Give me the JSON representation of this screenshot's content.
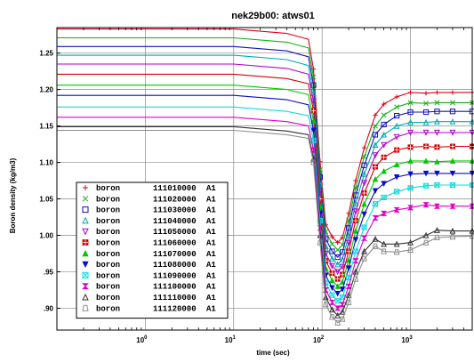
{
  "chart_data": {
    "type": "line",
    "title": "nek29b00: atws01",
    "xlabel": "time (sec)",
    "ylabel": "Boron density (kg/m3)",
    "xscale": "log",
    "xlim": [
      0.1,
      5000
    ],
    "ylim": [
      0.87,
      1.285
    ],
    "grid": true,
    "legend_position": "bottom-left",
    "x_ticks": [
      {
        "value": 1,
        "base": "10",
        "exp": "0"
      },
      {
        "value": 10,
        "base": "10",
        "exp": "1"
      },
      {
        "value": 100,
        "base": "10",
        "exp": "2"
      },
      {
        "value": 1000,
        "base": "10",
        "exp": "3"
      }
    ],
    "y_ticks": [
      {
        "value": 0.9,
        "label": ".90"
      },
      {
        "value": 0.95,
        "label": ".95"
      },
      {
        "value": 1.0,
        "label": "1.00"
      },
      {
        "value": 1.05,
        "label": "1.05"
      },
      {
        "value": 1.1,
        "label": "1.10"
      },
      {
        "value": 1.15,
        "label": "1.15"
      },
      {
        "value": 1.2,
        "label": "1.20"
      },
      {
        "value": 1.25,
        "label": "1.25"
      }
    ],
    "x_shape": [
      0.1,
      10,
      40,
      70,
      80,
      95,
      110,
      130,
      150,
      170,
      200,
      240,
      300,
      400,
      500,
      700,
      1000,
      1500,
      2000,
      3000,
      5000
    ],
    "series": [
      {
        "name": "boron",
        "id": "111010000",
        "suffix": "A1",
        "color": "#e0001a",
        "marker": "plus",
        "values": [
          1.283,
          1.283,
          1.277,
          1.269,
          1.228,
          1.101,
          1.015,
          0.998,
          0.99,
          0.997,
          1.03,
          1.075,
          1.12,
          1.165,
          1.18,
          1.19,
          1.196,
          1.195,
          1.196,
          1.196,
          1.196
        ]
      },
      {
        "name": "boron",
        "id": "111020000",
        "suffix": "A1",
        "color": "#12b012",
        "marker": "x",
        "values": [
          1.271,
          1.271,
          1.265,
          1.257,
          1.217,
          1.09,
          1.005,
          0.988,
          0.98,
          0.987,
          1.02,
          1.065,
          1.108,
          1.15,
          1.165,
          1.176,
          1.182,
          1.181,
          1.182,
          1.182,
          1.182
        ]
      },
      {
        "name": "boron",
        "id": "111030000",
        "suffix": "A1",
        "color": "#1212b8",
        "marker": "square",
        "values": [
          1.259,
          1.259,
          1.253,
          1.245,
          1.206,
          1.08,
          0.995,
          0.978,
          0.97,
          0.977,
          1.01,
          1.055,
          1.096,
          1.138,
          1.152,
          1.164,
          1.169,
          1.169,
          1.17,
          1.17,
          1.17
        ]
      },
      {
        "name": "boron",
        "id": "111040000",
        "suffix": "A1",
        "color": "#00aaaa",
        "marker": "triangle",
        "values": [
          1.247,
          1.247,
          1.241,
          1.233,
          1.195,
          1.07,
          0.985,
          0.968,
          0.96,
          0.967,
          1.0,
          1.044,
          1.084,
          1.124,
          1.138,
          1.15,
          1.155,
          1.155,
          1.156,
          1.156,
          1.156
        ]
      },
      {
        "name": "boron",
        "id": "111050000",
        "suffix": "A1",
        "color": "#b000d0",
        "marker": "triangle-down",
        "values": [
          1.235,
          1.235,
          1.229,
          1.221,
          1.184,
          1.06,
          0.975,
          0.958,
          0.95,
          0.957,
          0.99,
          1.033,
          1.072,
          1.11,
          1.124,
          1.135,
          1.141,
          1.141,
          1.141,
          1.141,
          1.141
        ]
      },
      {
        "name": "boron",
        "id": "111060000",
        "suffix": "A1",
        "color": "#d40000",
        "marker": "filled-square",
        "values": [
          1.221,
          1.221,
          1.215,
          1.208,
          1.171,
          1.05,
          0.965,
          0.948,
          0.94,
          0.946,
          0.978,
          1.02,
          1.058,
          1.094,
          1.107,
          1.117,
          1.121,
          1.122,
          1.121,
          1.122,
          1.122
        ]
      },
      {
        "name": "boron",
        "id": "111070000",
        "suffix": "A1",
        "color": "#00c800",
        "marker": "filled-triangle",
        "values": [
          1.206,
          1.206,
          1.2,
          1.193,
          1.157,
          1.04,
          0.955,
          0.938,
          0.93,
          0.936,
          0.966,
          1.006,
          1.043,
          1.077,
          1.088,
          1.097,
          1.102,
          1.102,
          1.101,
          1.102,
          1.102
        ]
      },
      {
        "name": "boron",
        "id": "111080000",
        "suffix": "A1",
        "color": "#0a0ac8",
        "marker": "filled-triangle-down",
        "values": [
          1.192,
          1.192,
          1.186,
          1.179,
          1.144,
          1.03,
          0.945,
          0.928,
          0.92,
          0.926,
          0.955,
          0.994,
          1.029,
          1.061,
          1.071,
          1.08,
          1.084,
          1.085,
          1.085,
          1.085,
          1.085
        ]
      },
      {
        "name": "boron",
        "id": "111090000",
        "suffix": "A1",
        "color": "#10dcdc",
        "marker": "square-x",
        "values": [
          1.176,
          1.176,
          1.17,
          1.164,
          1.13,
          1.02,
          0.935,
          0.918,
          0.91,
          0.915,
          0.942,
          0.978,
          1.011,
          1.043,
          1.052,
          1.06,
          1.065,
          1.068,
          1.069,
          1.069,
          1.069
        ]
      },
      {
        "name": "boron",
        "id": "111100000",
        "suffix": "A1",
        "color": "#e000c8",
        "marker": "bowtie",
        "values": [
          1.162,
          1.162,
          1.156,
          1.15,
          1.117,
          1.01,
          0.925,
          0.908,
          0.9,
          0.905,
          0.93,
          0.965,
          0.996,
          1.024,
          1.03,
          1.035,
          1.038,
          1.042,
          1.04,
          1.04,
          1.04
        ]
      },
      {
        "name": "boron",
        "id": "111110000",
        "suffix": "A1",
        "color": "#333333",
        "marker": "triangle",
        "values": [
          1.149,
          1.149,
          1.143,
          1.138,
          1.105,
          1.0,
          0.915,
          0.898,
          0.89,
          0.895,
          0.918,
          0.95,
          0.978,
          0.995,
          0.988,
          0.988,
          0.99,
          1.0,
          1.007,
          1.006,
          1.006
        ]
      },
      {
        "name": "boron",
        "id": "111120000",
        "suffix": "A1",
        "color": "#8c8c8c",
        "marker": "trapezoid",
        "values": [
          1.144,
          1.144,
          1.138,
          1.133,
          1.1,
          0.99,
          0.905,
          0.888,
          0.88,
          0.885,
          0.908,
          0.94,
          0.968,
          0.985,
          0.978,
          0.977,
          0.98,
          0.99,
          0.997,
          0.998,
          0.999
        ]
      }
    ]
  }
}
